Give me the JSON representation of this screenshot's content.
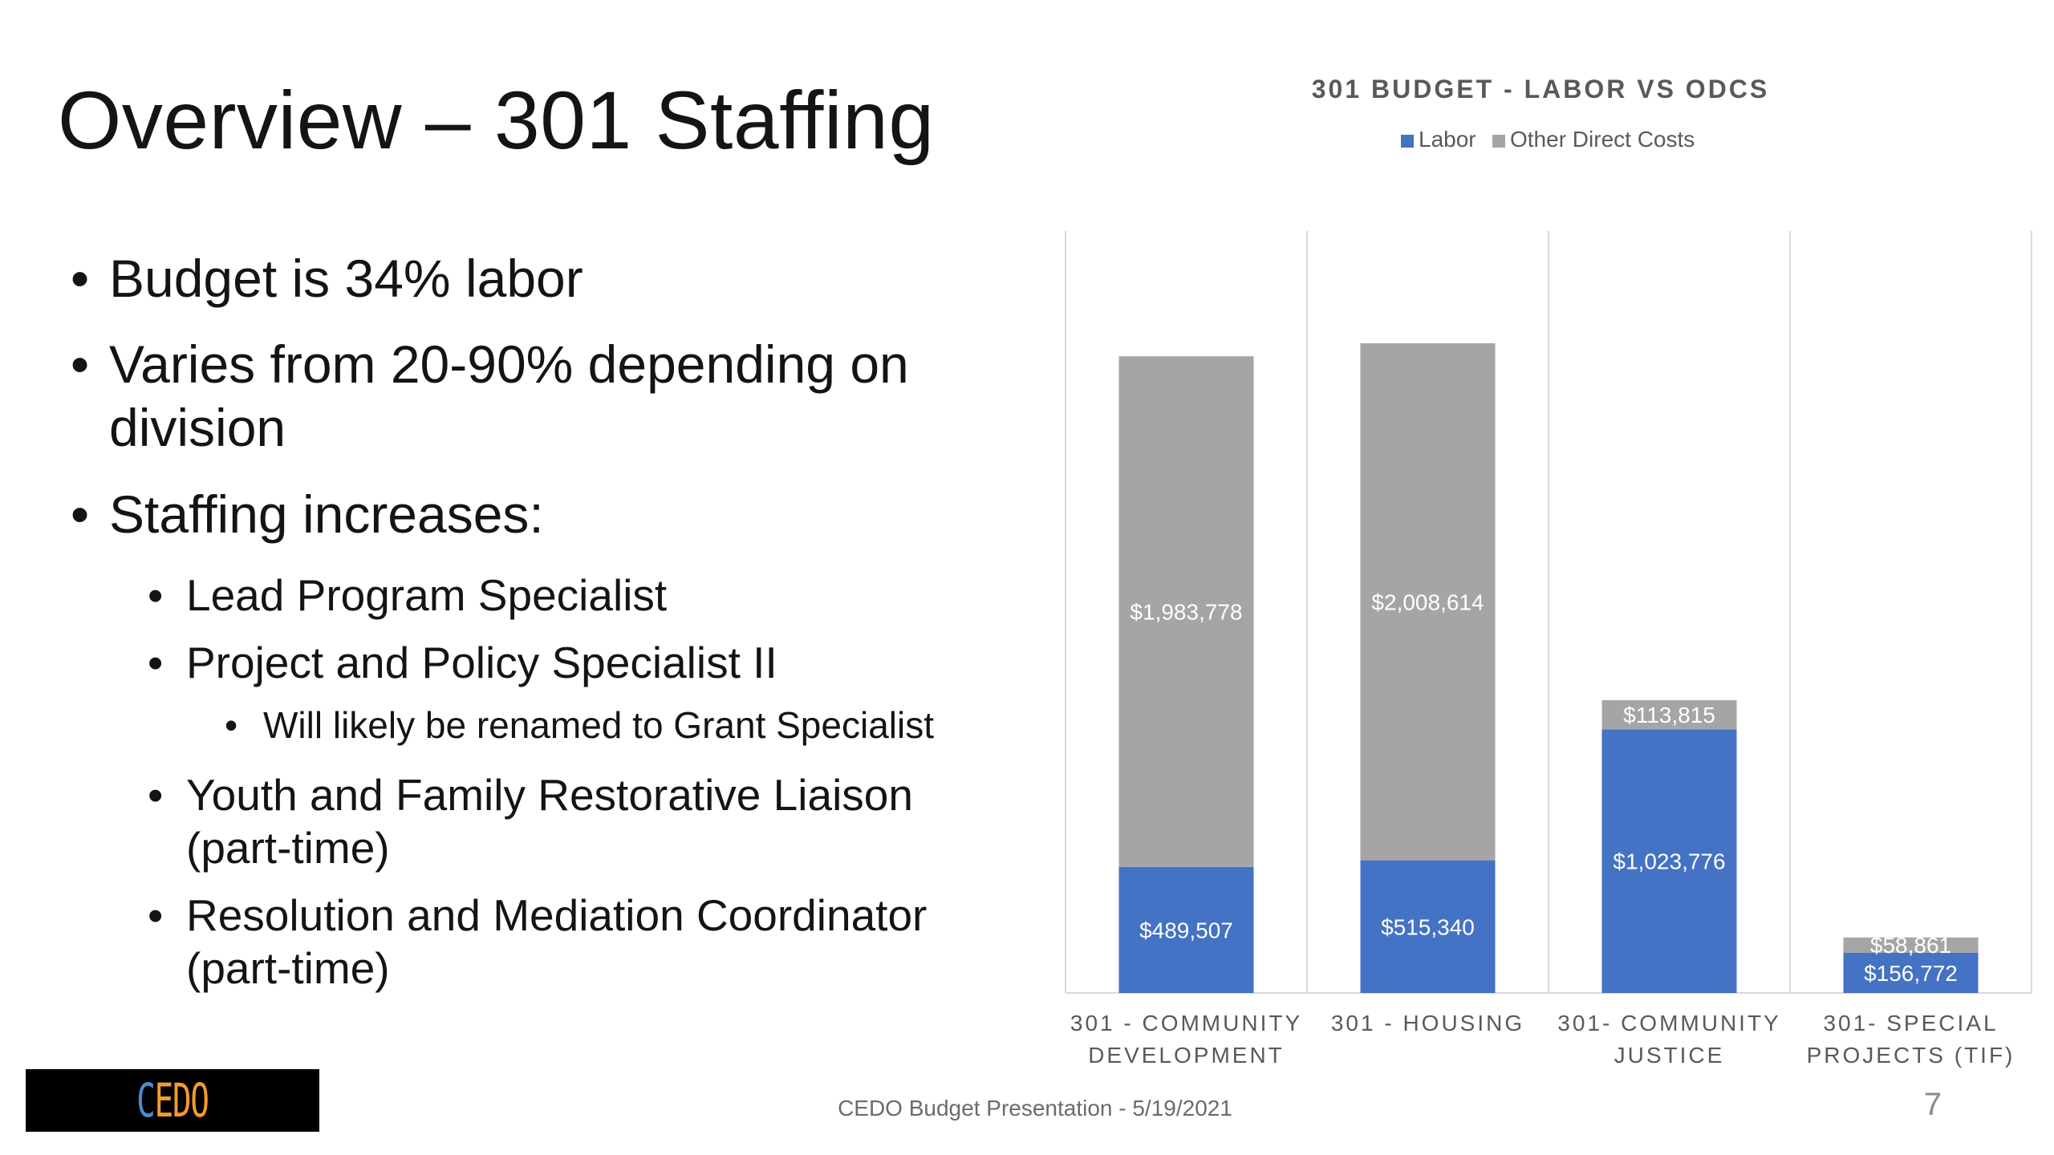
{
  "slide": {
    "title": "Overview – 301 Staffing",
    "bullets": [
      {
        "level": 1,
        "text": "Budget is 34% labor"
      },
      {
        "level": 1,
        "text": "Varies from 20-90% depending on division"
      },
      {
        "level": 1,
        "text": "Staffing increases:"
      },
      {
        "level": 2,
        "text": "Lead Program Specialist"
      },
      {
        "level": 2,
        "text": "Project and Policy Specialist II"
      },
      {
        "level": 3,
        "text": "Will likely be renamed to Grant Specialist"
      },
      {
        "level": 2,
        "text": "Youth and Family Restorative Liaison (part-time)"
      },
      {
        "level": 2,
        "text": "Resolution and Mediation Coordinator (part-time)"
      }
    ],
    "bullet_glyph": "•",
    "footer": "CEDO Budget Presentation - 5/19/2021",
    "page_number": "7",
    "logo_text": "CEDO"
  },
  "chart_data": {
    "type": "bar",
    "stacked": true,
    "title": "301 BUDGET - LABOR VS ODCS",
    "legend_position": "top",
    "grid": "vertical separators only",
    "categories": [
      [
        "301 - COMMUNITY",
        "DEVELOPMENT"
      ],
      [
        "301 - HOUSING"
      ],
      [
        "301- COMMUNITY",
        "JUSTICE"
      ],
      [
        "301- SPECIAL",
        "PROJECTS (TIF)"
      ]
    ],
    "ylim": [
      0,
      2960000
    ],
    "series": [
      {
        "name": "Labor",
        "color": "#4472c4",
        "values": [
          489507,
          515340,
          1023776,
          156772
        ],
        "labels": [
          "$489,507",
          "$515,340",
          "$1,023,776",
          "$156,772"
        ]
      },
      {
        "name": "Other Direct Costs",
        "color": "#a5a5a5",
        "values": [
          1983778,
          2008614,
          113815,
          58861
        ],
        "labels": [
          "$1,983,778",
          "$2,008,614",
          "$113,815",
          "$58,861"
        ]
      }
    ]
  }
}
